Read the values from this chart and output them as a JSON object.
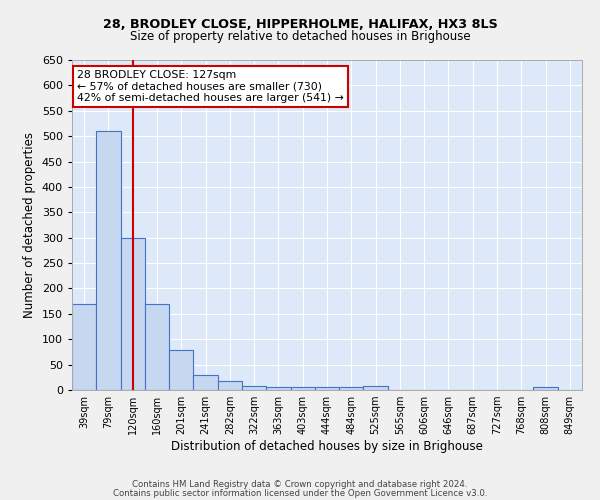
{
  "title1": "28, BRODLEY CLOSE, HIPPERHOLME, HALIFAX, HX3 8LS",
  "title2": "Size of property relative to detached houses in Brighouse",
  "xlabel": "Distribution of detached houses by size in Brighouse",
  "ylabel": "Number of detached properties",
  "categories": [
    "39sqm",
    "79sqm",
    "120sqm",
    "160sqm",
    "201sqm",
    "241sqm",
    "282sqm",
    "322sqm",
    "363sqm",
    "403sqm",
    "444sqm",
    "484sqm",
    "525sqm",
    "565sqm",
    "606sqm",
    "646sqm",
    "687sqm",
    "727sqm",
    "768sqm",
    "808sqm",
    "849sqm"
  ],
  "values": [
    170,
    510,
    300,
    170,
    78,
    30,
    18,
    7,
    5,
    5,
    5,
    5,
    7,
    0,
    0,
    0,
    0,
    0,
    0,
    6,
    0
  ],
  "bar_color": "#c5d8f0",
  "bar_edge_color": "#4472c4",
  "vline_x": 2,
  "vline_color": "#cc0000",
  "annotation_title": "28 BRODLEY CLOSE: 127sqm",
  "annotation_line1": "← 57% of detached houses are smaller (730)",
  "annotation_line2": "42% of semi-detached houses are larger (541) →",
  "box_color": "#ffffff",
  "box_edge_color": "#cc0000",
  "ylim": [
    0,
    650
  ],
  "yticks": [
    0,
    50,
    100,
    150,
    200,
    250,
    300,
    350,
    400,
    450,
    500,
    550,
    600,
    650
  ],
  "footer1": "Contains HM Land Registry data © Crown copyright and database right 2024.",
  "footer2": "Contains public sector information licensed under the Open Government Licence v3.0.",
  "fig_bg_color": "#f0f0f0",
  "plot_bg_color": "#dde8f8"
}
